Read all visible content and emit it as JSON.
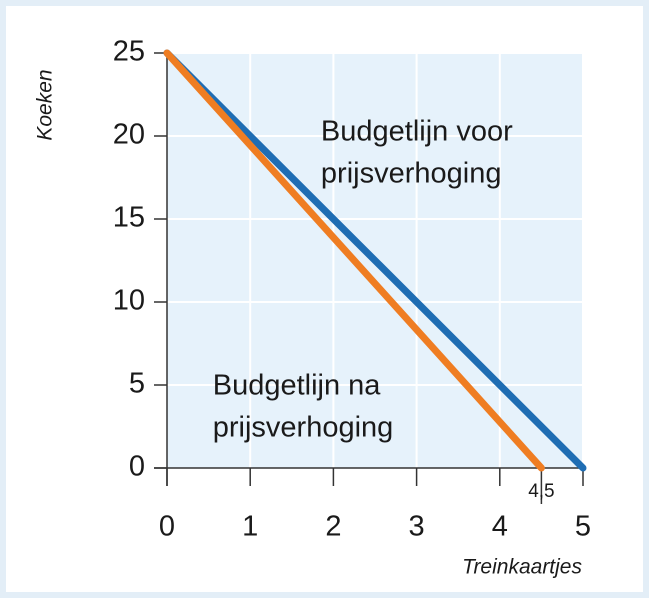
{
  "chart_data": {
    "type": "line",
    "x_label": "Treinkaartjes",
    "y_label": "Koeken",
    "series": [
      {
        "name": "Budgetlijn voor prijsverhoging",
        "color": "#1f6db3",
        "x": [
          0,
          5
        ],
        "values": [
          25,
          0
        ]
      },
      {
        "name": "Budgetlijn na prijsverhoging",
        "color": "#ef7d22",
        "x": [
          0,
          4.5
        ],
        "values": [
          25,
          0
        ]
      }
    ],
    "annotations": [
      {
        "lines": [
          "Budgetlijn voor",
          "prijsverhoging"
        ],
        "x": 1.85,
        "y": 20.2
      },
      {
        "lines": [
          "Budgetlijn na",
          "prijsverhoging"
        ],
        "x": 0.55,
        "y": 4.9
      }
    ],
    "marked_x": {
      "value": 4.5,
      "label": "4,5"
    },
    "xlim": [
      0,
      5
    ],
    "xticks": [
      0,
      1,
      2,
      3,
      4,
      5
    ],
    "ylim": [
      0,
      25
    ],
    "yticks": [
      0,
      5,
      10,
      15,
      20,
      25
    ],
    "grid": true,
    "plot_background": "#e6f2fb"
  }
}
